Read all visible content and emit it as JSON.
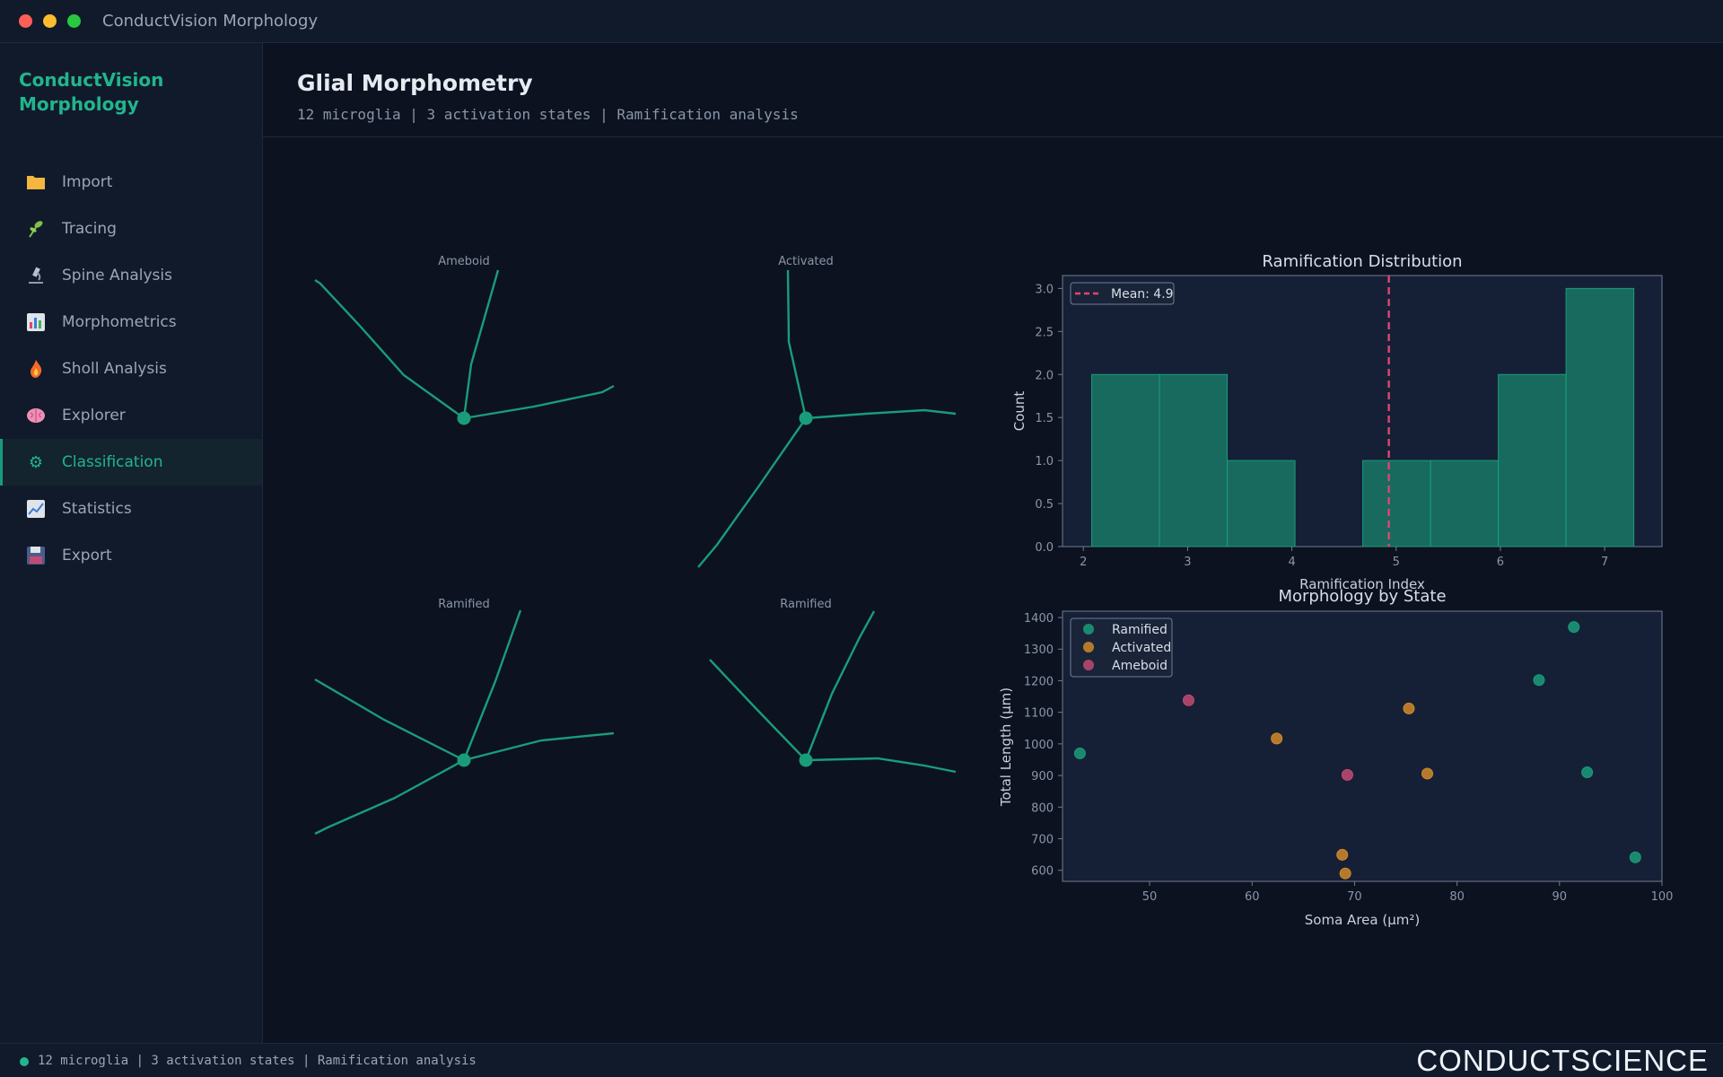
{
  "window": {
    "title": "ConductVision Morphology"
  },
  "colors": {
    "accent": "#22b58d",
    "ramified": "#1a9c7a",
    "activated": "#d08a2a",
    "ameboid": "#c24a72",
    "mean_line": "#e0466e",
    "close": "#ff5f57",
    "minimize": "#febc2e",
    "maximize": "#28c840"
  },
  "sidebar": {
    "brand": "ConductVision Morphology",
    "items": [
      {
        "label": "Import",
        "icon": "folder-icon"
      },
      {
        "label": "Tracing",
        "icon": "herb-icon"
      },
      {
        "label": "Spine Analysis",
        "icon": "microscope-icon"
      },
      {
        "label": "Morphometrics",
        "icon": "bar-chart-icon"
      },
      {
        "label": "Sholl Analysis",
        "icon": "fire-icon"
      },
      {
        "label": "Explorer",
        "icon": "brain-icon"
      },
      {
        "label": "Classification",
        "icon": "gear-icon",
        "active": true
      },
      {
        "label": "Statistics",
        "icon": "line-chart-icon"
      },
      {
        "label": "Export",
        "icon": "floppy-icon"
      }
    ]
  },
  "header": {
    "title": "Glial Morphometry",
    "subtitle": "12 microglia | 3 activation states | Ramification analysis"
  },
  "cells": [
    {
      "label": "Ameboid"
    },
    {
      "label": "Activated"
    },
    {
      "label": "Ramified"
    },
    {
      "label": "Ramified"
    }
  ],
  "chart_data": [
    {
      "type": "bar",
      "title": "Ramification Distribution",
      "xlabel": "Ramification Index",
      "ylabel": "Count",
      "bin_edges": [
        2.08,
        2.73,
        3.38,
        4.03,
        4.68,
        5.33,
        5.98,
        6.63,
        7.28
      ],
      "values": [
        2,
        2,
        1,
        0,
        1,
        1,
        2,
        3
      ],
      "xlim": [
        1.8,
        7.55
      ],
      "ylim": [
        0,
        3.15
      ],
      "xticks": [
        2,
        3,
        4,
        5,
        6,
        7
      ],
      "yticks": [
        0.0,
        0.5,
        1.0,
        1.5,
        2.0,
        2.5,
        3.0
      ],
      "mean": 4.93,
      "legend": "Mean: 4.9",
      "legend_position": "top-left",
      "grid": false
    },
    {
      "type": "scatter",
      "title": "Morphology by State",
      "xlabel": "Soma Area (µm²)",
      "ylabel": "Total Length (µm)",
      "xlim": [
        41.5,
        100
      ],
      "ylim": [
        565,
        1420
      ],
      "xticks": [
        50,
        60,
        70,
        80,
        90,
        100
      ],
      "yticks": [
        600,
        700,
        800,
        900,
        1000,
        1100,
        1200,
        1300,
        1400
      ],
      "legend_position": "top-left",
      "series": [
        {
          "name": "Ramified",
          "points": [
            [
              43.2,
              970
            ],
            [
              88.0,
              1202
            ],
            [
              91.4,
              1370
            ],
            [
              92.7,
              910
            ],
            [
              97.4,
              641
            ]
          ]
        },
        {
          "name": "Activated",
          "points": [
            [
              62.4,
              1017
            ],
            [
              75.3,
              1112
            ],
            [
              77.1,
              906
            ],
            [
              68.8,
              649
            ],
            [
              69.1,
              590
            ]
          ]
        },
        {
          "name": "Ameboid",
          "points": [
            [
              53.8,
              1138
            ],
            [
              69.3,
              902
            ]
          ]
        }
      ]
    }
  ],
  "statusbar": {
    "text": "12 microglia | 3 activation states | Ramification analysis"
  },
  "logo": {
    "text": "CONDUCTSCIENCE"
  }
}
